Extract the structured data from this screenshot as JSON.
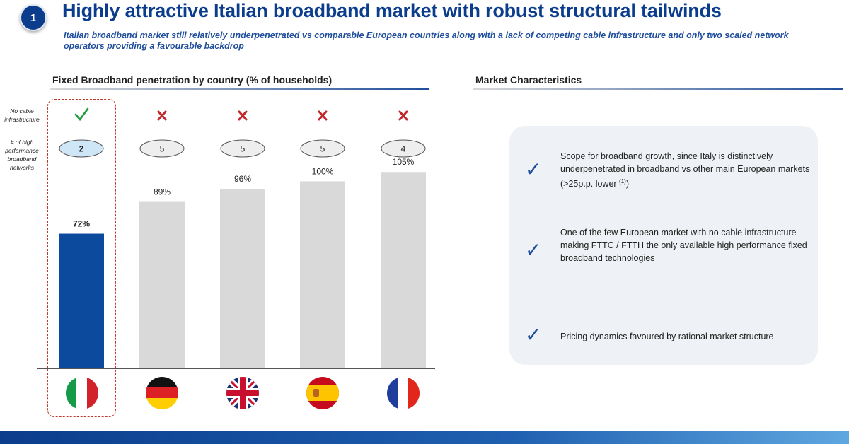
{
  "header": {
    "badge": "1",
    "title": "Highly attractive Italian broadband market with robust structural tailwinds",
    "subtitle": "Italian broadband market still relatively underpenetrated vs comparable European countries along with a lack of competing cable infrastructure and only two scaled network operators providing a favourable backdrop"
  },
  "left_section": {
    "heading": "Fixed Broadband penetration by country (% of households)",
    "row_labels": {
      "no_cable": "No cable infrastructure",
      "networks": "# of high performance broadband networks"
    }
  },
  "right_section": {
    "heading": "Market Characteristics",
    "items": [
      {
        "text": "Scope for broadband growth, since Italy is distinctively underpenetrated in broadband vs other main European markets (>25p.p. lower ",
        "footnote": "(1)",
        "suffix": ")"
      },
      {
        "text": "One of the few European market with no cable infrastructure making FTTC / FTTH the only available high performance fixed broadband technologies",
        "footnote": "",
        "suffix": ""
      },
      {
        "text": "Pricing dynamics favoured by rational market structure",
        "footnote": "",
        "suffix": ""
      }
    ]
  },
  "colors": {
    "highlight_bar": "#0b4a9c",
    "other_bar": "#d9d9d9",
    "check": "#1f9e3a",
    "cross": "#c0282d",
    "pill_highlight": "#cfe6f7",
    "pill_other": "#eeeeee"
  },
  "flags": [
    "italy-flag-icon",
    "germany-flag-icon",
    "uk-flag-icon",
    "spain-flag-icon",
    "france-flag-icon"
  ],
  "chart_data": {
    "type": "bar",
    "title": "Fixed Broadband penetration by country (% of households)",
    "unit": "%",
    "categories": [
      "Italy",
      "Germany",
      "UK",
      "Spain",
      "France"
    ],
    "values": [
      72,
      89,
      96,
      100,
      105
    ],
    "value_labels": [
      "72%",
      "89%",
      "96%",
      "100%",
      "105%"
    ],
    "highlight_index": 0,
    "no_cable_infrastructure": [
      true,
      false,
      false,
      false,
      false
    ],
    "high_performance_networks": [
      2,
      5,
      5,
      5,
      4
    ],
    "ylim": [
      0,
      110
    ],
    "grid": false
  }
}
